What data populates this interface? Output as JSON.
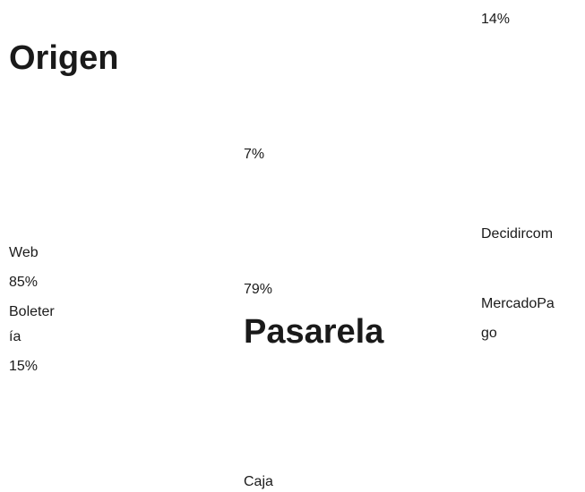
{
  "origen": {
    "title": "Origen",
    "lines": [
      "Web",
      "85%",
      "Boleter",
      "ía",
      "15%"
    ]
  },
  "pasarela": {
    "title": "Pasarela",
    "labels": [
      "14%",
      "7%",
      "79%",
      "Caja",
      "Decidircom",
      "MercadoPa",
      "go"
    ]
  }
}
